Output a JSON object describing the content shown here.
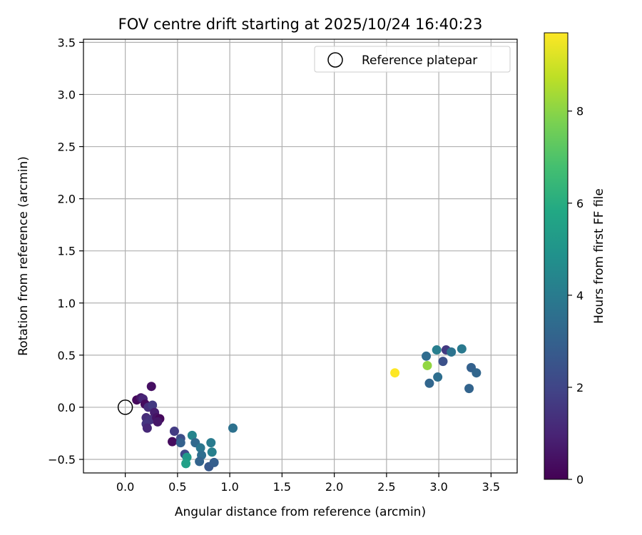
{
  "chart_data": {
    "type": "scatter",
    "title": "FOV centre drift starting at 2025/10/24 16:40:23",
    "xlabel": "Angular distance from reference (arcmin)",
    "ylabel": "Rotation from reference (arcmin)",
    "xlim": [
      -0.4,
      3.75
    ],
    "ylim": [
      -0.63,
      3.53
    ],
    "xticks": [
      0.0,
      0.5,
      1.0,
      1.5,
      2.0,
      2.5,
      3.0,
      3.5
    ],
    "xtick_labels": [
      "0.0",
      "0.5",
      "1.0",
      "1.5",
      "2.0",
      "2.5",
      "3.0",
      "3.5"
    ],
    "yticks": [
      -0.5,
      0.0,
      0.5,
      1.0,
      1.5,
      2.0,
      2.5,
      3.0,
      3.5
    ],
    "ytick_labels": [
      "−0.5",
      "0.0",
      "0.5",
      "1.0",
      "1.5",
      "2.0",
      "2.5",
      "3.0",
      "3.5"
    ],
    "grid": true,
    "legend": {
      "position": "top-right",
      "entries": [
        "Reference platepar"
      ]
    },
    "reference_point": {
      "x": 0.0,
      "y": 0.0
    },
    "colorbar": {
      "label": "Hours from first FF file",
      "range": [
        0,
        9.7
      ],
      "ticks": [
        0,
        2,
        4,
        6,
        8
      ],
      "tick_labels": [
        "0",
        "2",
        "4",
        "6",
        "8"
      ],
      "colormap": "viridis"
    },
    "points": [
      {
        "x": 0.11,
        "y": 0.07,
        "hours": 0.2
      },
      {
        "x": 0.15,
        "y": 0.09,
        "hours": 0.6
      },
      {
        "x": 0.17,
        "y": 0.08,
        "hours": 1.0
      },
      {
        "x": 0.19,
        "y": 0.03,
        "hours": 0.3
      },
      {
        "x": 0.22,
        "y": 0.0,
        "hours": 1.3
      },
      {
        "x": 0.25,
        "y": 0.2,
        "hours": 0.4
      },
      {
        "x": 0.26,
        "y": 0.02,
        "hours": 1.6
      },
      {
        "x": 0.28,
        "y": -0.05,
        "hours": 0.8
      },
      {
        "x": 0.2,
        "y": -0.1,
        "hours": 1.2
      },
      {
        "x": 0.24,
        "y": -0.12,
        "hours": 1.4
      },
      {
        "x": 0.3,
        "y": -0.1,
        "hours": 0.5
      },
      {
        "x": 0.33,
        "y": -0.11,
        "hours": 0.2
      },
      {
        "x": 0.31,
        "y": -0.14,
        "hours": 0.6
      },
      {
        "x": 0.2,
        "y": -0.16,
        "hours": 1.5
      },
      {
        "x": 0.21,
        "y": -0.2,
        "hours": 1.1
      },
      {
        "x": 0.45,
        "y": -0.33,
        "hours": 0.3
      },
      {
        "x": 0.47,
        "y": -0.23,
        "hours": 1.7
      },
      {
        "x": 0.53,
        "y": -0.3,
        "hours": 2.3
      },
      {
        "x": 0.53,
        "y": -0.34,
        "hours": 3.0
      },
      {
        "x": 0.57,
        "y": -0.45,
        "hours": 2.1
      },
      {
        "x": 0.59,
        "y": -0.48,
        "hours": 5.2
      },
      {
        "x": 0.58,
        "y": -0.54,
        "hours": 5.5
      },
      {
        "x": 0.64,
        "y": -0.27,
        "hours": 4.4
      },
      {
        "x": 0.67,
        "y": -0.34,
        "hours": 3.3
      },
      {
        "x": 0.72,
        "y": -0.39,
        "hours": 3.8
      },
      {
        "x": 0.73,
        "y": -0.46,
        "hours": 3.5
      },
      {
        "x": 0.71,
        "y": -0.52,
        "hours": 3.1
      },
      {
        "x": 0.8,
        "y": -0.57,
        "hours": 2.7
      },
      {
        "x": 0.85,
        "y": -0.53,
        "hours": 2.9
      },
      {
        "x": 0.82,
        "y": -0.34,
        "hours": 4.0
      },
      {
        "x": 0.83,
        "y": -0.43,
        "hours": 4.2
      },
      {
        "x": 1.03,
        "y": -0.2,
        "hours": 3.6
      },
      {
        "x": 2.58,
        "y": 0.33,
        "hours": 9.7
      },
      {
        "x": 2.89,
        "y": 0.4,
        "hours": 8.1
      },
      {
        "x": 2.88,
        "y": 0.49,
        "hours": 3.4
      },
      {
        "x": 2.91,
        "y": 0.23,
        "hours": 3.2
      },
      {
        "x": 2.98,
        "y": 0.55,
        "hours": 4.1
      },
      {
        "x": 2.99,
        "y": 0.29,
        "hours": 3.5
      },
      {
        "x": 3.04,
        "y": 0.44,
        "hours": 2.4
      },
      {
        "x": 3.07,
        "y": 0.55,
        "hours": 1.6
      },
      {
        "x": 3.12,
        "y": 0.53,
        "hours": 3.7
      },
      {
        "x": 3.22,
        "y": 0.56,
        "hours": 3.9
      },
      {
        "x": 3.29,
        "y": 0.18,
        "hours": 3.1
      },
      {
        "x": 3.31,
        "y": 0.38,
        "hours": 3.0
      },
      {
        "x": 3.36,
        "y": 0.33,
        "hours": 3.2
      }
    ]
  }
}
